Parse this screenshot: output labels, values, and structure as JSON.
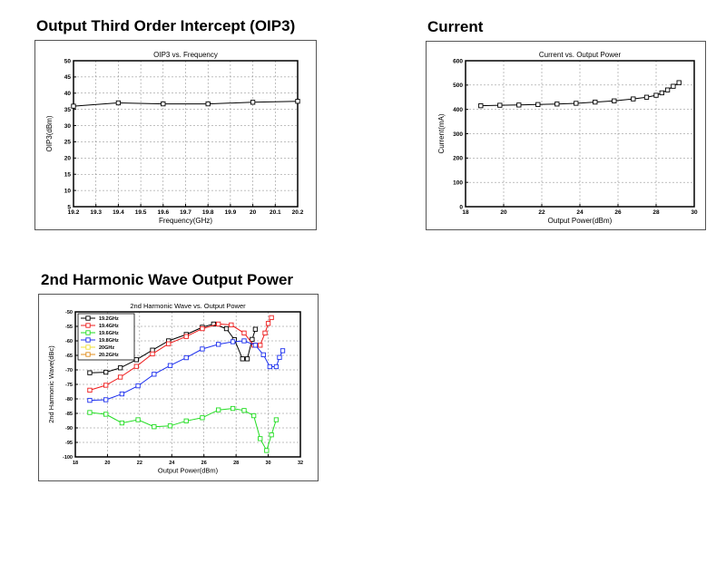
{
  "sections": {
    "oip3_title": "Output Third Order Intercept (OIP3)",
    "current_title": "Current",
    "harmonic_title": "2nd Harmonic Wave Output Power"
  },
  "colors": {
    "line": "#000000",
    "grid": "#808080",
    "panel_border": "#555555"
  },
  "chart_data": [
    {
      "id": "oip3",
      "type": "line",
      "title": "OIP3 vs. Frequency",
      "xlabel": "Frequency(GHz)",
      "ylabel": "OIP3(dBm)",
      "xlim": [
        19.2,
        20.2
      ],
      "ylim": [
        5,
        50
      ],
      "xticks": [
        19.2,
        19.3,
        19.4,
        19.5,
        19.6,
        19.7,
        19.8,
        19.9,
        20,
        20.1,
        20.2
      ],
      "xtick_labels": [
        "19.2",
        "19.3",
        "19.4",
        "19.5",
        "19.6",
        "19.7",
        "19.8",
        "19.9",
        "20",
        "20.1",
        "20.2"
      ],
      "yticks": [
        5,
        10,
        15,
        20,
        25,
        30,
        35,
        40,
        45,
        50
      ],
      "ytick_labels": [
        "5",
        "10",
        "15",
        "20",
        "25",
        "30",
        "35",
        "40",
        "45",
        "50"
      ],
      "grid": true,
      "series": [
        {
          "color": "#000000",
          "marker": "square",
          "x": [
            19.2,
            19.4,
            19.6,
            19.8,
            20.0,
            20.2
          ],
          "y": [
            36.0,
            37.0,
            36.7,
            36.7,
            37.2,
            37.5
          ]
        }
      ]
    },
    {
      "id": "current",
      "type": "line",
      "title": "Current vs. Output Power",
      "xlabel": "Output Power(dBm)",
      "ylabel": "Current(mA)",
      "xlim": [
        18,
        30
      ],
      "ylim": [
        0,
        600
      ],
      "xticks": [
        18,
        20,
        22,
        24,
        26,
        28,
        30
      ],
      "xtick_labels": [
        "18",
        "20",
        "22",
        "24",
        "26",
        "28",
        "30"
      ],
      "yticks": [
        0,
        100,
        200,
        300,
        400,
        500,
        600
      ],
      "ytick_labels": [
        "0",
        "100",
        "200",
        "300",
        "400",
        "500",
        "600"
      ],
      "grid": true,
      "series": [
        {
          "color": "#000000",
          "marker": "square",
          "x": [
            18.8,
            19.8,
            20.8,
            21.8,
            22.8,
            23.8,
            24.8,
            25.8,
            26.8,
            27.5,
            28.0,
            28.3,
            28.6,
            28.9,
            29.2
          ],
          "y": [
            415,
            417,
            418,
            420,
            422,
            425,
            430,
            435,
            443,
            450,
            458,
            468,
            480,
            495,
            510
          ]
        }
      ]
    },
    {
      "id": "harmonic",
      "type": "line",
      "title": "2nd Harmonic Wave vs. Output Power",
      "xlabel": "Output Power(dBm)",
      "ylabel": "2nd Harmonic Wave(dBc)",
      "xlim": [
        18,
        32
      ],
      "ylim": [
        -100,
        -50
      ],
      "xticks": [
        18,
        20,
        22,
        24,
        26,
        28,
        30,
        32
      ],
      "xtick_labels": [
        "18",
        "20",
        "22",
        "24",
        "26",
        "28",
        "30",
        "32"
      ],
      "yticks": [
        -100,
        -95,
        -90,
        -85,
        -80,
        -75,
        -70,
        -65,
        -60,
        -55,
        -50
      ],
      "ytick_labels": [
        "-100",
        "-95",
        "-90",
        "-85",
        "-80",
        "-75",
        "-70",
        "-65",
        "-60",
        "-55",
        "-50"
      ],
      "grid": true,
      "legend": "top-left",
      "series": [
        {
          "name": "19.2GHz",
          "color": "#000000",
          "marker": "square",
          "x": [
            18.9,
            19.9,
            20.8,
            21.8,
            22.8,
            23.8,
            24.9,
            25.9,
            26.6,
            27.4,
            27.9,
            28.4,
            28.7,
            29.0,
            29.2
          ],
          "y": [
            -71,
            -70.8,
            -69.3,
            -66.5,
            -63.2,
            -60,
            -57.8,
            -55.3,
            -54.2,
            -55.8,
            -59.6,
            -66.2,
            -66.2,
            -59.5,
            -56
          ]
        },
        {
          "name": "19.4GHz",
          "color": "#ee1c1c",
          "marker": "square",
          "x": [
            18.9,
            19.9,
            20.8,
            21.8,
            22.8,
            23.8,
            24.9,
            25.9,
            26.9,
            27.7,
            28.5,
            29.1,
            29.5,
            29.8,
            30.0,
            30.2
          ],
          "y": [
            -77,
            -75.3,
            -72.5,
            -68.8,
            -64.5,
            -61,
            -58.5,
            -55.8,
            -54.2,
            -54.5,
            -57.3,
            -61.5,
            -61.5,
            -57.3,
            -54,
            -52
          ]
        },
        {
          "name": "19.6GHz",
          "color": "#22dd22",
          "marker": "square",
          "x": [
            18.9,
            19.9,
            20.9,
            21.9,
            22.9,
            23.9,
            24.9,
            25.9,
            26.9,
            27.8,
            28.5,
            29.1,
            29.5,
            29.9,
            30.2,
            30.5
          ],
          "y": [
            -84.7,
            -85.3,
            -88.3,
            -87.2,
            -89.6,
            -89.3,
            -87.6,
            -86.5,
            -83.8,
            -83.3,
            -84,
            -85.8,
            -93.7,
            -97.8,
            -92.4,
            -87.2
          ]
        },
        {
          "name": "19.8GHz",
          "color": "#1c2fee",
          "marker": "square",
          "x": [
            18.9,
            19.9,
            20.9,
            21.9,
            22.9,
            23.9,
            24.9,
            25.9,
            26.9,
            27.8,
            28.5,
            29.2,
            29.7,
            30.1,
            30.5,
            30.7,
            30.9
          ],
          "y": [
            -80.5,
            -80.3,
            -78.3,
            -75.5,
            -71.5,
            -68.5,
            -65.8,
            -62.8,
            -61.2,
            -60.3,
            -60,
            -61.5,
            -64.8,
            -68.9,
            -68.9,
            -65.7,
            -63.4
          ]
        },
        {
          "name": "20GHz",
          "color": "#f0e03a",
          "marker": "square",
          "x": [],
          "y": []
        },
        {
          "name": "20.2GHz",
          "color": "#e08c1c",
          "marker": "square",
          "x": [],
          "y": []
        }
      ]
    }
  ]
}
